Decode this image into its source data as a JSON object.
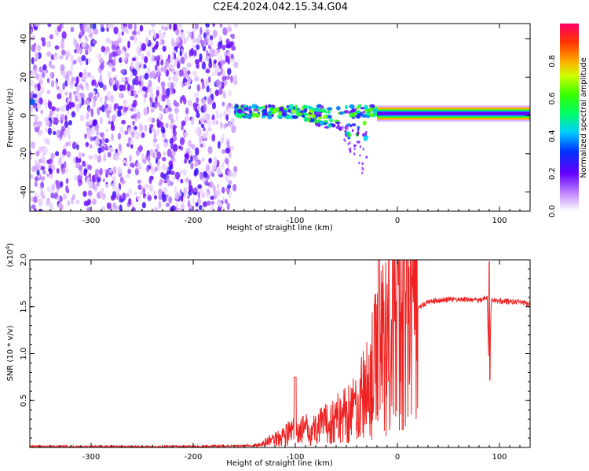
{
  "title": "C2E4.2024.042.15.34.G04",
  "chart_data": [
    {
      "type": "heatmap",
      "xlabel": "Height of straight line (km)",
      "ylabel": "Frequency (Hz)",
      "xlim": [
        -360,
        130
      ],
      "ylim": [
        -50,
        48
      ],
      "x_ticks": [
        -300,
        -200,
        -100,
        0,
        100
      ],
      "y_ticks": [
        -40,
        -20,
        0,
        20,
        40
      ],
      "colorbar": {
        "label": "Normalized spectral amplitude",
        "range": [
          0,
          1
        ],
        "ticks": [
          "0.0",
          "0.2",
          "0.4",
          "0.6",
          "0.8"
        ]
      },
      "regions": [
        {
          "x": [
            -360,
            -158
          ],
          "freq": [
            -50,
            48
          ],
          "amplitude": 0.08
        },
        {
          "x": [
            -158,
            -20
          ],
          "freq": [
            -3,
            6
          ],
          "amplitude": 0.4
        },
        {
          "x": [
            -20,
            130
          ],
          "freq": [
            0,
            2
          ],
          "amplitude": 0.9
        }
      ],
      "grid": false
    },
    {
      "type": "line",
      "xlabel": "Height of straight line (km)",
      "ylabel": "SNR (10 * v/v)",
      "y_multiplier": "(x10",
      "y_multiplier_exp": "4",
      "y_multiplier_close": ")",
      "xlim": [
        -360,
        130
      ],
      "ylim": [
        0,
        2.0
      ],
      "x_ticks": [
        -300,
        -200,
        -100,
        0,
        100
      ],
      "y_ticks": [
        "0.5",
        "1.0",
        "1.5",
        "2.0"
      ],
      "series": [
        {
          "x": [
            -360,
            -300,
            -200,
            -140,
            -130,
            -115,
            -100,
            -80,
            -60,
            -40,
            -30,
            -25,
            -20,
            -15,
            -10,
            -5,
            0,
            10,
            20,
            30,
            40,
            60,
            80,
            88,
            90,
            92,
            100,
            120,
            130
          ],
          "y": [
            0.01,
            0.01,
            0.01,
            0.02,
            0.05,
            0.12,
            0.18,
            0.2,
            0.3,
            0.45,
            0.6,
            0.75,
            0.95,
            1.1,
            1.2,
            1.25,
            1.3,
            1.4,
            1.48,
            1.55,
            1.57,
            1.58,
            1.57,
            1.6,
            0.73,
            1.58,
            1.56,
            1.55,
            1.52
          ],
          "color": "#ee2222"
        }
      ],
      "peaks": [
        {
          "x": -100,
          "y": 0.75
        },
        {
          "x": -18,
          "y": 2.0
        },
        {
          "x": 90,
          "y": 1.98
        },
        {
          "x": 90,
          "y": 0.72
        }
      ],
      "grid": false
    }
  ]
}
